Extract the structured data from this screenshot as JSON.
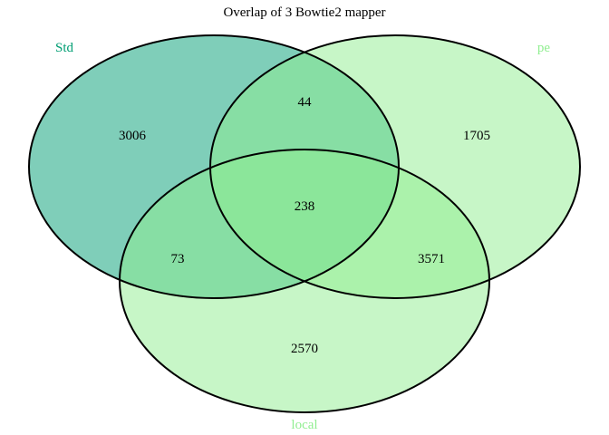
{
  "title": "Overlap of 3 Bowtie2 mapper",
  "sets": [
    {
      "name": "Std",
      "color": "#009E73",
      "fill": "#009E73",
      "fill_opacity": 0.5
    },
    {
      "name": "pe",
      "color": "#90EE90",
      "fill": "#90EE90",
      "fill_opacity": 0.5
    },
    {
      "name": "local",
      "color": "#90EE90",
      "fill": "#90EE90",
      "fill_opacity": 0.5
    }
  ],
  "regions": {
    "std_only": "3006",
    "pe_only": "1705",
    "local_only": "2570",
    "std_pe": "44",
    "std_local": "73",
    "pe_local": "3571",
    "all_three": "238"
  }
}
